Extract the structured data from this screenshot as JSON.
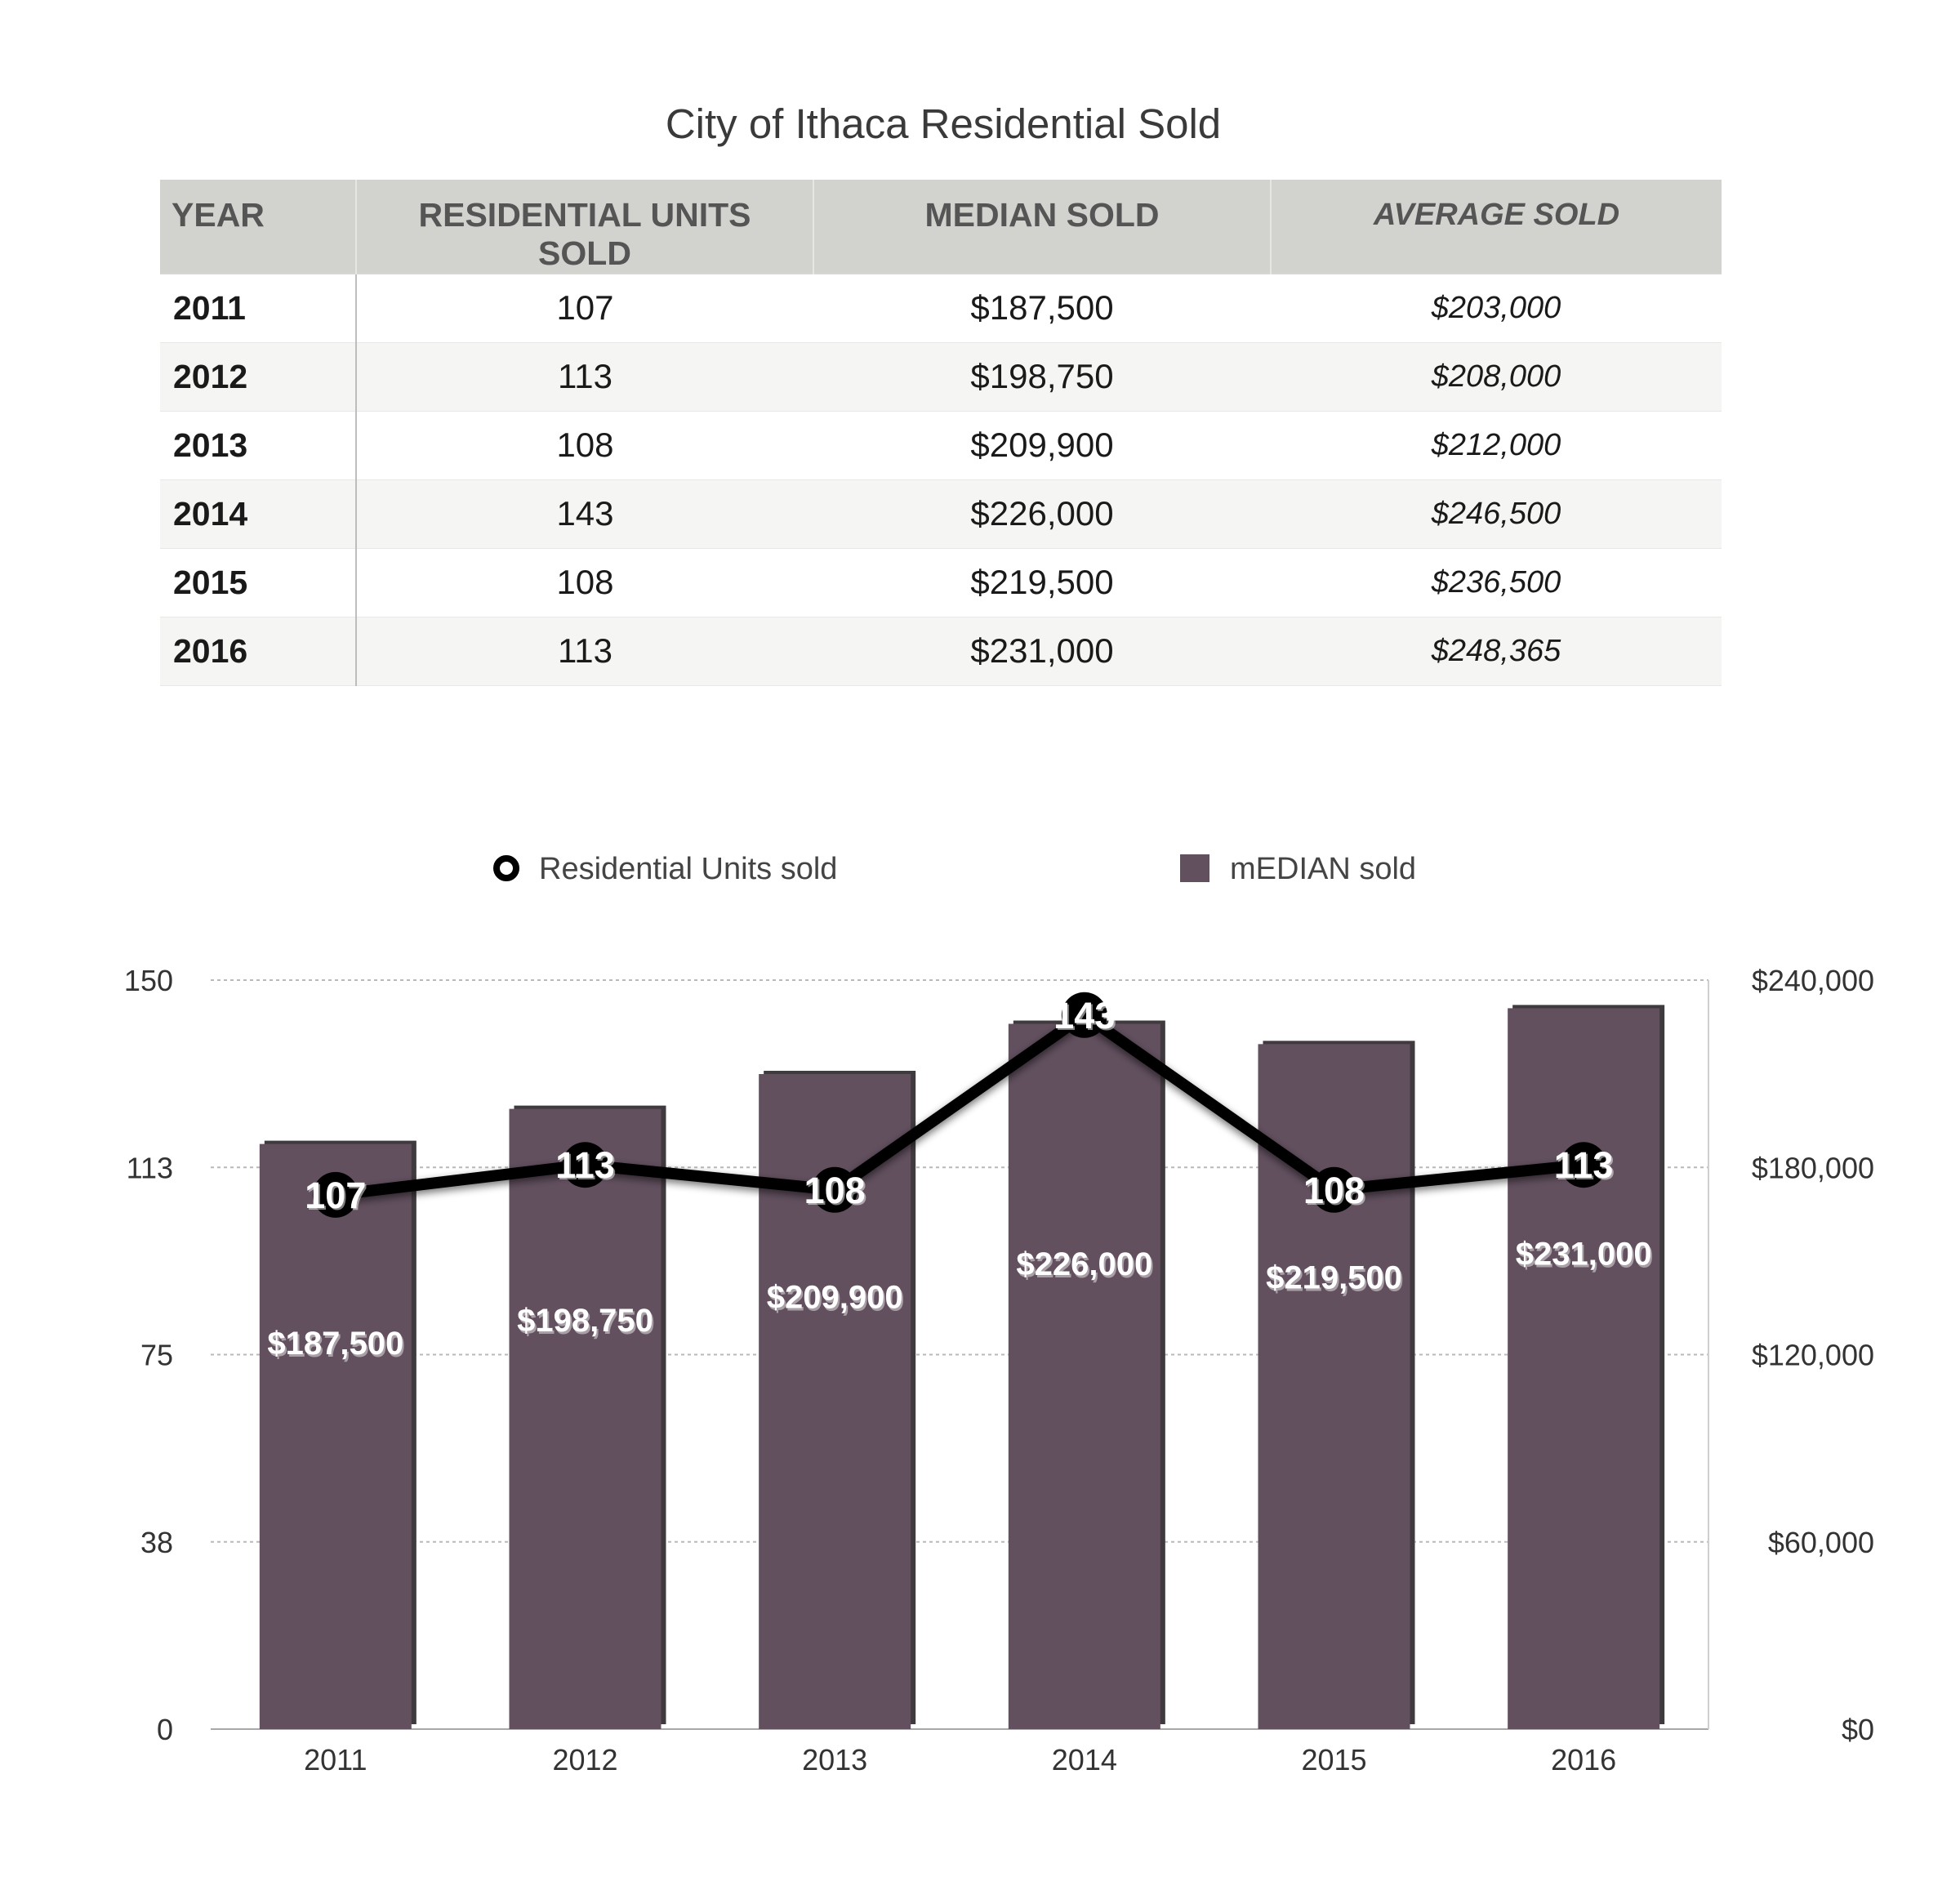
{
  "title": "City of Ithaca Residential Sold",
  "table": {
    "headers": {
      "year": "YEAR",
      "units": "RESIDENTIAL UNITS SOLD",
      "median": "MEDIAN SOLD",
      "average": "AVERAGE SOLD"
    },
    "rows": [
      {
        "year": "2011",
        "units": "107",
        "median": "$187,500",
        "average": "$203,000"
      },
      {
        "year": "2012",
        "units": "113",
        "median": "$198,750",
        "average": "$208,000"
      },
      {
        "year": "2013",
        "units": "108",
        "median": "$209,900",
        "average": "$212,000"
      },
      {
        "year": "2014",
        "units": "143",
        "median": "$226,000",
        "average": "$246,500"
      },
      {
        "year": "2015",
        "units": "108",
        "median": "$219,500",
        "average": "$236,500"
      },
      {
        "year": "2016",
        "units": "113",
        "median": "$231,000",
        "average": "$248,365"
      }
    ]
  },
  "chart_data": {
    "type": "bar",
    "categories": [
      "2011",
      "2012",
      "2013",
      "2014",
      "2015",
      "2016"
    ],
    "series": [
      {
        "name": "mEDIAN sold",
        "type": "bar",
        "axis": "right",
        "values": [
          187500,
          198750,
          209900,
          226000,
          219500,
          231000
        ],
        "labels": [
          "$187,500",
          "$198,750",
          "$209,900",
          "$226,000",
          "$219,500",
          "$231,000"
        ],
        "color": "#62505f"
      },
      {
        "name": "Residential Units sold",
        "type": "line",
        "axis": "left",
        "values": [
          107,
          113,
          108,
          143,
          108,
          113
        ],
        "labels": [
          "107",
          "113",
          "108",
          "143",
          "108",
          "113"
        ],
        "color": "#000000"
      }
    ],
    "y_left": {
      "ylim": [
        0,
        150
      ],
      "ticks": [
        0,
        37.5,
        75,
        112.5,
        150
      ],
      "tick_labels": [
        "0",
        "38",
        "75",
        "113",
        "150"
      ]
    },
    "y_right": {
      "ylim": [
        0,
        240000
      ],
      "ticks": [
        0,
        60000,
        120000,
        180000,
        240000
      ],
      "tick_labels": [
        "$0",
        "$60,000",
        "$120,000",
        "$180,000",
        "$240,000"
      ]
    },
    "legend_position": "top",
    "grid": true
  }
}
